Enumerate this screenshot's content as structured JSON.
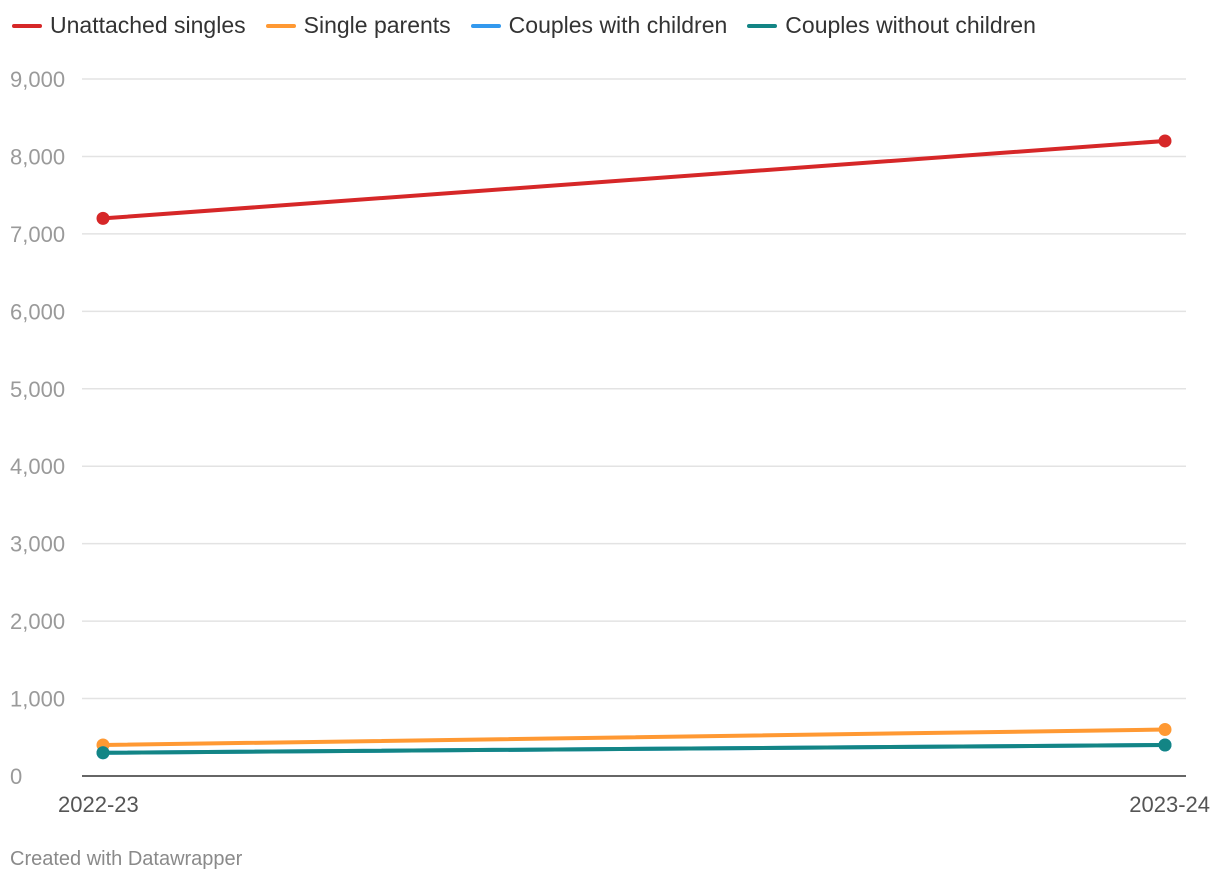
{
  "chart_data": {
    "type": "line",
    "title": "",
    "xlabel": "",
    "ylabel": "",
    "categories": [
      "2022-23",
      "2023-24"
    ],
    "ylim": [
      0,
      9000
    ],
    "yticks": [
      0,
      1000,
      2000,
      3000,
      4000,
      5000,
      6000,
      7000,
      8000,
      9000
    ],
    "ytick_labels": [
      "0",
      "1,000",
      "2,000",
      "3,000",
      "4,000",
      "5,000",
      "6,000",
      "7,000",
      "8,000",
      "9,000"
    ],
    "grid": true,
    "legend_position": "top-left",
    "series": [
      {
        "name": "Unattached singles",
        "color": "#d62728",
        "values": [
          7200,
          8200
        ]
      },
      {
        "name": "Single parents",
        "color": "#ff9933",
        "values": [
          400,
          600
        ]
      },
      {
        "name": "Couples with children",
        "color": "#3399ee",
        "values": [
          300,
          400
        ]
      },
      {
        "name": "Couples without children",
        "color": "#138585",
        "values": [
          300,
          400
        ]
      }
    ]
  },
  "footer": {
    "credit": "Created with Datawrapper"
  }
}
